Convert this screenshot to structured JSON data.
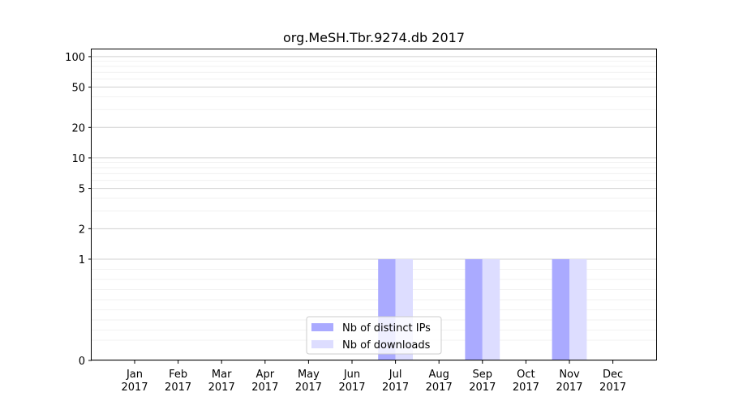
{
  "chart_data": {
    "type": "bar",
    "title": "org.MeSH.Tbr.9274.db 2017",
    "xlabel": "",
    "ylabel": "",
    "yscale": "symlog",
    "ylim": [
      0,
      120
    ],
    "yticks": [
      0,
      1,
      2,
      5,
      10,
      20,
      50,
      100
    ],
    "grid": true,
    "legend_position": "bottom-center",
    "categories": [
      [
        "Jan",
        "2017"
      ],
      [
        "Feb",
        "2017"
      ],
      [
        "Mar",
        "2017"
      ],
      [
        "Apr",
        "2017"
      ],
      [
        "May",
        "2017"
      ],
      [
        "Jun",
        "2017"
      ],
      [
        "Jul",
        "2017"
      ],
      [
        "Aug",
        "2017"
      ],
      [
        "Sep",
        "2017"
      ],
      [
        "Oct",
        "2017"
      ],
      [
        "Nov",
        "2017"
      ],
      [
        "Dec",
        "2017"
      ]
    ],
    "series": [
      {
        "name": "Nb of distinct IPs",
        "color": "#aaaaff",
        "values": [
          0,
          0,
          0,
          0,
          0,
          0,
          1,
          0,
          1,
          0,
          1,
          0
        ]
      },
      {
        "name": "Nb of downloads",
        "color": "#ddddff",
        "values": [
          0,
          0,
          0,
          0,
          0,
          0,
          1,
          0,
          1,
          0,
          1,
          0
        ]
      }
    ]
  }
}
